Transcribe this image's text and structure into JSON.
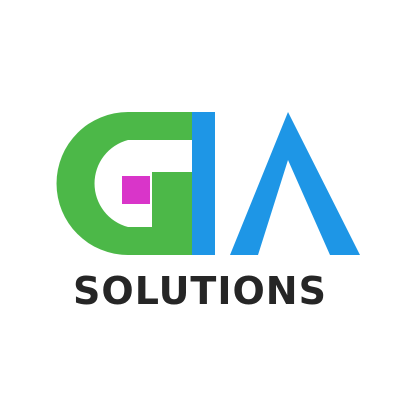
{
  "logo": {
    "name": "GIA",
    "tagline": "SOLUTIONS"
  },
  "colors": {
    "green": "#4CB848",
    "blue": "#1E96E6",
    "magenta": "#D935C9",
    "text": "#262626",
    "background": "#FFFFFF"
  }
}
